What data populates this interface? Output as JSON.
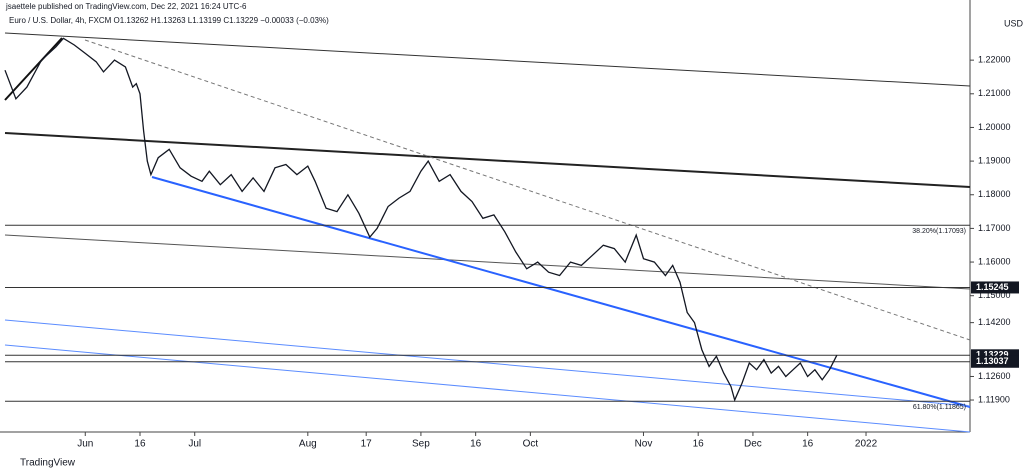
{
  "chart_data": {
    "type": "line",
    "header": "jsaettele published on TradingView.com, Dec 22, 2021 16:24 UTC-6",
    "title": "Euro / U.S. Dollar, 4h, FXCM O1.13262 H1.13263 L1.13199 C1.13229 −0.00033 (−0.03%)",
    "currency": "USD",
    "watermark": "TradingView",
    "color": "#131722",
    "x": [
      -22,
      -19,
      -16,
      -12,
      -8,
      -6,
      -3,
      0,
      3,
      5,
      8,
      11,
      13,
      14,
      15,
      16,
      17,
      18,
      20,
      23,
      26,
      29,
      32,
      34,
      37,
      40,
      43,
      46,
      49,
      52,
      55,
      58,
      61,
      63,
      66,
      69,
      72,
      75,
      78,
      80,
      83,
      86,
      89,
      92,
      94,
      97,
      100,
      103,
      106,
      109,
      112,
      115,
      118,
      121,
      124,
      127,
      130,
      133,
      136,
      139,
      142,
      145,
      148,
      151,
      153,
      156,
      159,
      161,
      163,
      165,
      167,
      169,
      171,
      173,
      175,
      177,
      178,
      180,
      182,
      184,
      186,
      188,
      190,
      192,
      194,
      196,
      198,
      200,
      202,
      204,
      206
    ],
    "values": [
      1.217,
      1.2085,
      1.212,
      1.22,
      1.224,
      1.2265,
      1.2245,
      1.222,
      1.2195,
      1.2165,
      1.22,
      1.218,
      1.212,
      1.213,
      1.21,
      1.199,
      1.19,
      1.186,
      1.191,
      1.1935,
      1.188,
      1.1855,
      1.184,
      1.187,
      1.183,
      1.186,
      1.181,
      1.185,
      1.181,
      1.188,
      1.189,
      1.186,
      1.1885,
      1.184,
      1.176,
      1.175,
      1.18,
      1.1745,
      1.1674,
      1.17,
      1.1765,
      1.179,
      1.181,
      1.187,
      1.19,
      1.184,
      1.186,
      1.181,
      1.178,
      1.173,
      1.174,
      1.169,
      1.163,
      1.158,
      1.16,
      1.157,
      1.156,
      1.16,
      1.159,
      1.162,
      1.165,
      1.164,
      1.16,
      1.168,
      1.161,
      1.16,
      1.156,
      1.159,
      1.154,
      1.145,
      1.142,
      1.134,
      1.129,
      1.132,
      1.127,
      1.123,
      1.119,
      1.124,
      1.13,
      1.128,
      1.131,
      1.127,
      1.129,
      1.126,
      1.128,
      1.13,
      1.126,
      1.128,
      1.125,
      1.128,
      1.1323
    ],
    "xlim": [
      -22,
      242.5
    ],
    "xticks": [
      {
        "value": 0,
        "label": "Jun"
      },
      {
        "value": 15,
        "label": "16"
      },
      {
        "value": 30,
        "label": "Jul"
      },
      {
        "value": 61,
        "label": "Aug"
      },
      {
        "value": 77,
        "label": "17"
      },
      {
        "value": 92,
        "label": "Sep"
      },
      {
        "value": 107,
        "label": "16"
      },
      {
        "value": 122,
        "label": "Oct"
      },
      {
        "value": 153,
        "label": "Nov"
      },
      {
        "value": 168,
        "label": "16"
      },
      {
        "value": 183,
        "label": "Dec"
      },
      {
        "value": 198,
        "label": "16"
      },
      {
        "value": 214,
        "label": "2022"
      }
    ],
    "ylim": [
      1.1095,
      1.2349
    ],
    "yticks": [
      {
        "value": 1.22,
        "label": "1.22000"
      },
      {
        "value": 1.21,
        "label": "1.21000"
      },
      {
        "value": 1.2,
        "label": "1.20000"
      },
      {
        "value": 1.19,
        "label": "1.19000"
      },
      {
        "value": 1.18,
        "label": "1.18000"
      },
      {
        "value": 1.17,
        "label": "1.17000"
      },
      {
        "value": 1.16,
        "label": "1.16000"
      },
      {
        "value": 1.15,
        "label": "1.15000"
      },
      {
        "value": 1.142,
        "label": "1.14200"
      },
      {
        "value": 1.126,
        "label": "1.12600"
      },
      {
        "value": 1.119,
        "label": "1.11900"
      }
    ],
    "fib_levels": [
      {
        "value": 1.17093,
        "label": "38.20%(1.17093)"
      },
      {
        "value": 1.11865,
        "label": "61.80%(1.11865)"
      }
    ],
    "price_lines": [
      1.15245,
      1.13229,
      1.13037
    ]
  }
}
